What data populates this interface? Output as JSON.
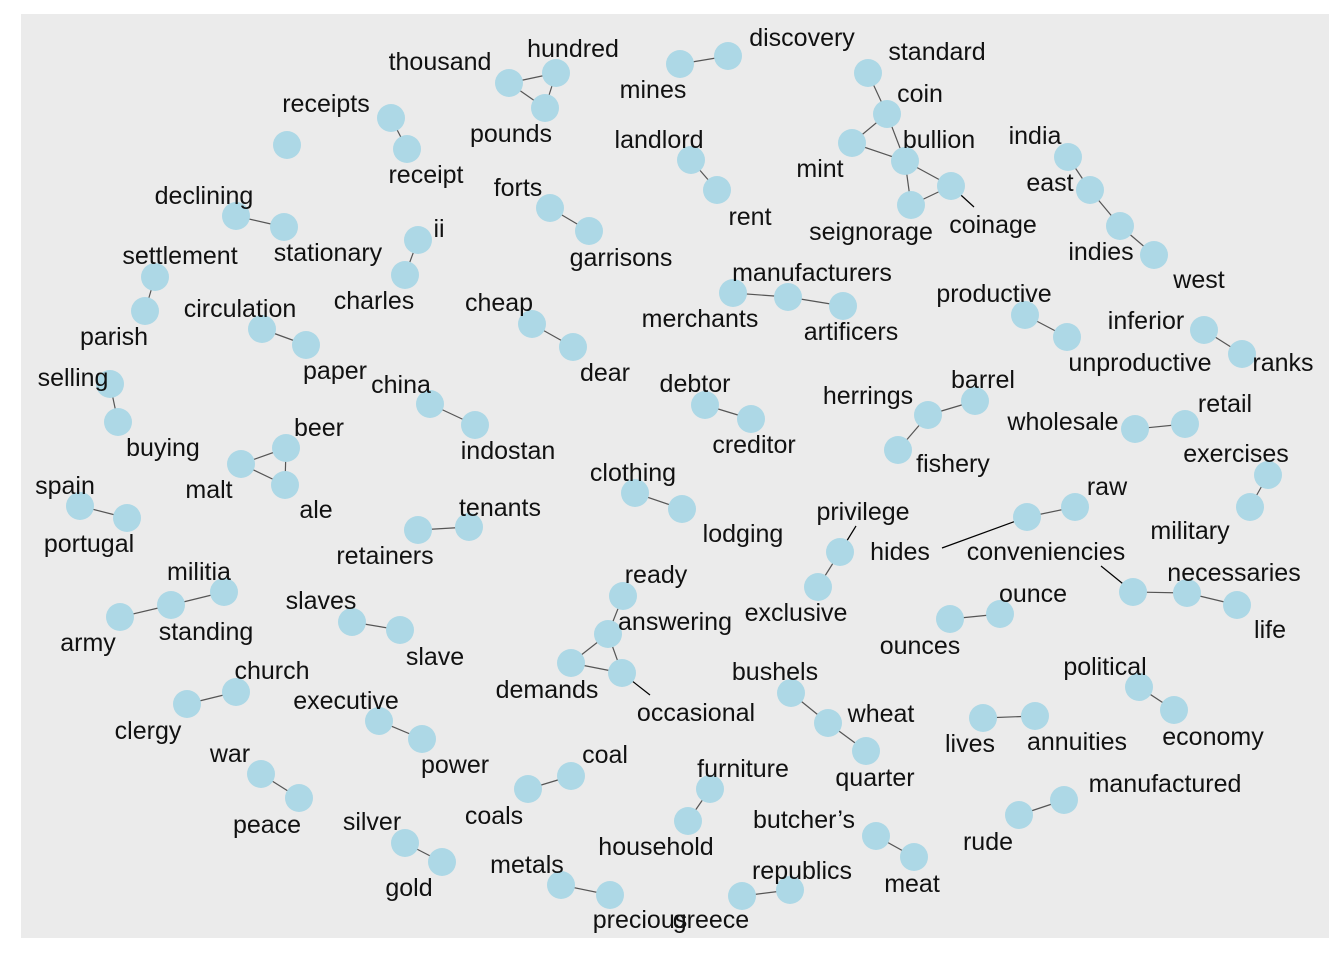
{
  "colors": {
    "panel_background": "#ebebeb",
    "node_fill": "#add8e6",
    "edge": "#555555",
    "label": "#111111"
  },
  "nodes": [
    {
      "id": "thousand",
      "label": "thousand"
    },
    {
      "id": "hundred",
      "label": "hundred"
    },
    {
      "id": "pounds",
      "label": "pounds"
    },
    {
      "id": "mines",
      "label": "mines"
    },
    {
      "id": "discovery",
      "label": "discovery"
    },
    {
      "id": "standard",
      "label": "standard"
    },
    {
      "id": "coin",
      "label": "coin"
    },
    {
      "id": "mint",
      "label": "mint"
    },
    {
      "id": "bullion",
      "label": "bullion"
    },
    {
      "id": "seignorage",
      "label": "seignorage"
    },
    {
      "id": "coinage",
      "label": "coinage"
    },
    {
      "id": "receipts",
      "label": "receipts"
    },
    {
      "id": "receipt",
      "label": "receipt"
    },
    {
      "id": "isolated",
      "label": ""
    },
    {
      "id": "landlord",
      "label": "landlord"
    },
    {
      "id": "rent",
      "label": "rent"
    },
    {
      "id": "india",
      "label": "india"
    },
    {
      "id": "east",
      "label": "east"
    },
    {
      "id": "indies",
      "label": "indies"
    },
    {
      "id": "west",
      "label": "west"
    },
    {
      "id": "declining",
      "label": "declining"
    },
    {
      "id": "stationary",
      "label": "stationary"
    },
    {
      "id": "forts",
      "label": "forts"
    },
    {
      "id": "garrisons",
      "label": "garrisons"
    },
    {
      "id": "ii",
      "label": "ii"
    },
    {
      "id": "charles",
      "label": "charles"
    },
    {
      "id": "settlement",
      "label": "settlement"
    },
    {
      "id": "parish",
      "label": "parish"
    },
    {
      "id": "manufacturers",
      "label": "manufacturers"
    },
    {
      "id": "merchants",
      "label": "merchants"
    },
    {
      "id": "artificers",
      "label": "artificers"
    },
    {
      "id": "productive",
      "label": "productive"
    },
    {
      "id": "unproductive",
      "label": "unproductive"
    },
    {
      "id": "inferior",
      "label": "inferior"
    },
    {
      "id": "ranks",
      "label": "ranks"
    },
    {
      "id": "circulation",
      "label": "circulation"
    },
    {
      "id": "paper",
      "label": "paper"
    },
    {
      "id": "cheap",
      "label": "cheap"
    },
    {
      "id": "dear",
      "label": "dear"
    },
    {
      "id": "selling",
      "label": "selling"
    },
    {
      "id": "buying",
      "label": "buying"
    },
    {
      "id": "china",
      "label": "china"
    },
    {
      "id": "indostan",
      "label": "indostan"
    },
    {
      "id": "debtor",
      "label": "debtor"
    },
    {
      "id": "creditor",
      "label": "creditor"
    },
    {
      "id": "herrings",
      "label": "herrings"
    },
    {
      "id": "barrel",
      "label": "barrel"
    },
    {
      "id": "fishery",
      "label": "fishery"
    },
    {
      "id": "wholesale",
      "label": "wholesale"
    },
    {
      "id": "retail",
      "label": "retail"
    },
    {
      "id": "beer",
      "label": "beer"
    },
    {
      "id": "malt",
      "label": "malt"
    },
    {
      "id": "ale",
      "label": "ale"
    },
    {
      "id": "clothing",
      "label": "clothing"
    },
    {
      "id": "lodging",
      "label": "lodging"
    },
    {
      "id": "exercises",
      "label": "exercises"
    },
    {
      "id": "military",
      "label": "military"
    },
    {
      "id": "spain",
      "label": "spain"
    },
    {
      "id": "portugal",
      "label": "portugal"
    },
    {
      "id": "tenants",
      "label": "tenants"
    },
    {
      "id": "retainers",
      "label": "retainers"
    },
    {
      "id": "privilege",
      "label": "privilege"
    },
    {
      "id": "exclusive",
      "label": "exclusive"
    },
    {
      "id": "raw",
      "label": "raw"
    },
    {
      "id": "hides",
      "label": "hides"
    },
    {
      "id": "conveniencies",
      "label": "conveniencies"
    },
    {
      "id": "necessaries",
      "label": "necessaries"
    },
    {
      "id": "life",
      "label": "life"
    },
    {
      "id": "militia",
      "label": "militia"
    },
    {
      "id": "standing",
      "label": "standing"
    },
    {
      "id": "army",
      "label": "army"
    },
    {
      "id": "ready",
      "label": "ready"
    },
    {
      "id": "answering",
      "label": "answering"
    },
    {
      "id": "demands",
      "label": "demands"
    },
    {
      "id": "occasional",
      "label": "occasional"
    },
    {
      "id": "slaves",
      "label": "slaves"
    },
    {
      "id": "slave",
      "label": "slave"
    },
    {
      "id": "ounce",
      "label": "ounce"
    },
    {
      "id": "ounces",
      "label": "ounces"
    },
    {
      "id": "church",
      "label": "church"
    },
    {
      "id": "clergy",
      "label": "clergy"
    },
    {
      "id": "executive",
      "label": "executive"
    },
    {
      "id": "power",
      "label": "power"
    },
    {
      "id": "bushels",
      "label": "bushels"
    },
    {
      "id": "wheat",
      "label": "wheat"
    },
    {
      "id": "quarter",
      "label": "quarter"
    },
    {
      "id": "political",
      "label": "political"
    },
    {
      "id": "economy",
      "label": "economy"
    },
    {
      "id": "lives",
      "label": "lives"
    },
    {
      "id": "annuities",
      "label": "annuities"
    },
    {
      "id": "war",
      "label": "war"
    },
    {
      "id": "peace",
      "label": "peace"
    },
    {
      "id": "coal",
      "label": "coal"
    },
    {
      "id": "coals",
      "label": "coals"
    },
    {
      "id": "furniture",
      "label": "furniture"
    },
    {
      "id": "household",
      "label": "household"
    },
    {
      "id": "manufactured",
      "label": "manufactured"
    },
    {
      "id": "rude",
      "label": "rude"
    },
    {
      "id": "silver",
      "label": "silver"
    },
    {
      "id": "gold",
      "label": "gold"
    },
    {
      "id": "butchers",
      "label": "butcher’s"
    },
    {
      "id": "meat",
      "label": "meat"
    },
    {
      "id": "metals",
      "label": "metals"
    },
    {
      "id": "precious",
      "label": "precious"
    },
    {
      "id": "republics",
      "label": "republics"
    },
    {
      "id": "greece",
      "label": "greece"
    }
  ],
  "edges": [
    [
      "thousand",
      "hundred"
    ],
    [
      "thousand",
      "pounds"
    ],
    [
      "hundred",
      "pounds"
    ],
    [
      "mines",
      "discovery"
    ],
    [
      "standard",
      "coin"
    ],
    [
      "coin",
      "mint"
    ],
    [
      "coin",
      "bullion"
    ],
    [
      "mint",
      "bullion"
    ],
    [
      "bullion",
      "seignorage"
    ],
    [
      "bullion",
      "coinage"
    ],
    [
      "seignorage",
      "coinage"
    ],
    [
      "receipts",
      "receipt"
    ],
    [
      "landlord",
      "rent"
    ],
    [
      "india",
      "east"
    ],
    [
      "east",
      "indies"
    ],
    [
      "indies",
      "west"
    ],
    [
      "declining",
      "stationary"
    ],
    [
      "forts",
      "garrisons"
    ],
    [
      "ii",
      "charles"
    ],
    [
      "settlement",
      "parish"
    ],
    [
      "manufacturers",
      "merchants"
    ],
    [
      "manufacturers",
      "artificers"
    ],
    [
      "productive",
      "unproductive"
    ],
    [
      "inferior",
      "ranks"
    ],
    [
      "circulation",
      "paper"
    ],
    [
      "cheap",
      "dear"
    ],
    [
      "selling",
      "buying"
    ],
    [
      "china",
      "indostan"
    ],
    [
      "debtor",
      "creditor"
    ],
    [
      "herrings",
      "barrel"
    ],
    [
      "herrings",
      "fishery"
    ],
    [
      "wholesale",
      "retail"
    ],
    [
      "beer",
      "malt"
    ],
    [
      "beer",
      "ale"
    ],
    [
      "malt",
      "ale"
    ],
    [
      "clothing",
      "lodging"
    ],
    [
      "exercises",
      "military"
    ],
    [
      "spain",
      "portugal"
    ],
    [
      "tenants",
      "retainers"
    ],
    [
      "privilege",
      "exclusive"
    ],
    [
      "raw",
      "hides"
    ],
    [
      "conveniencies",
      "necessaries"
    ],
    [
      "necessaries",
      "life"
    ],
    [
      "militia",
      "standing"
    ],
    [
      "standing",
      "army"
    ],
    [
      "ready",
      "answering"
    ],
    [
      "answering",
      "demands"
    ],
    [
      "answering",
      "occasional"
    ],
    [
      "demands",
      "occasional"
    ],
    [
      "slaves",
      "slave"
    ],
    [
      "ounce",
      "ounces"
    ],
    [
      "church",
      "clergy"
    ],
    [
      "executive",
      "power"
    ],
    [
      "bushels",
      "wheat"
    ],
    [
      "wheat",
      "quarter"
    ],
    [
      "political",
      "economy"
    ],
    [
      "lives",
      "annuities"
    ],
    [
      "war",
      "peace"
    ],
    [
      "coal",
      "coals"
    ],
    [
      "furniture",
      "household"
    ],
    [
      "manufactured",
      "rude"
    ],
    [
      "silver",
      "gold"
    ],
    [
      "butchers",
      "meat"
    ],
    [
      "metals",
      "precious"
    ],
    [
      "republics",
      "greece"
    ]
  ]
}
